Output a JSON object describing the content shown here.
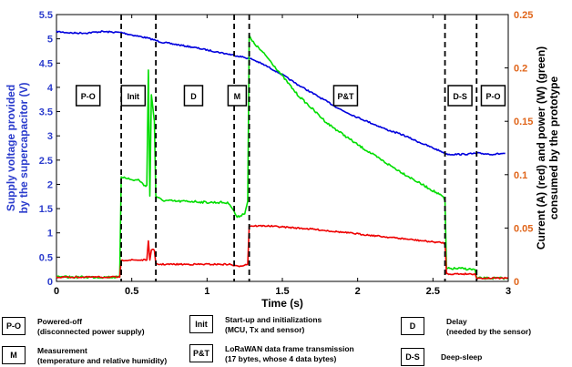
{
  "chart_data": {
    "type": "line",
    "xlabel": "Time (s)",
    "ylabel_left": "Supply voltage provided by the supercapacitor (V)",
    "ylabel_left_lines": [
      "Supply voltage provided",
      "by the supercapacitor (V)"
    ],
    "ylabel_right": "Current (A) (red) and power (W) (green) consumed by the prototype",
    "ylabel_right_lines": [
      "Current (A) (red) and power (W) (green)",
      "consumed by the prototype"
    ],
    "xlim": [
      0,
      3
    ],
    "ylim_left": [
      0,
      5.5
    ],
    "ylim_right": [
      0,
      0.25
    ],
    "x_ticks": [
      "0",
      "0.5",
      "1",
      "1.5",
      "2",
      "2.5",
      "3"
    ],
    "y_left_ticks": [
      "0",
      "0.5",
      "1",
      "1.5",
      "2",
      "2.5",
      "3",
      "3.5",
      "4",
      "4.5",
      "5",
      "5.5"
    ],
    "y_right_ticks": [
      "0",
      "0.05",
      "0.1",
      "0.15",
      "0.2",
      "0.25"
    ],
    "grid": false,
    "colors": {
      "voltage": "#0000dd",
      "current": "#ee0000",
      "power": "#00dd00",
      "left_axis": "#2a3bcc",
      "right_axis": "#e0651a"
    },
    "series": [
      {
        "axis": "left",
        "color": "voltage",
        "x": [
          0,
          0.1,
          0.2,
          0.3,
          0.43,
          0.5,
          0.6,
          0.7,
          0.8,
          0.9,
          1.0,
          1.1,
          1.2,
          1.3,
          1.4,
          1.5,
          1.6,
          1.7,
          1.8,
          1.9,
          2.0,
          2.1,
          2.2,
          2.3,
          2.4,
          2.5,
          2.6,
          2.7,
          2.8,
          2.9,
          2.98
        ],
        "y": [
          5.15,
          5.12,
          5.12,
          5.15,
          5.13,
          5.08,
          5.02,
          4.93,
          4.88,
          4.83,
          4.77,
          4.71,
          4.65,
          4.58,
          4.43,
          4.26,
          4.06,
          3.88,
          3.7,
          3.52,
          3.38,
          3.25,
          3.12,
          3.02,
          2.88,
          2.75,
          2.62,
          2.62,
          2.64,
          2.62,
          2.64
        ]
      },
      {
        "axis": "right",
        "color": "current",
        "x": [
          0,
          0.42,
          0.43,
          0.45,
          0.5,
          0.55,
          0.6,
          0.61,
          0.62,
          0.63,
          0.65,
          0.66,
          0.7,
          0.8,
          0.9,
          1.0,
          1.1,
          1.15,
          1.2,
          1.27,
          1.28,
          1.4,
          1.5,
          1.7,
          1.9,
          2.1,
          2.3,
          2.5,
          2.58,
          2.59,
          2.7,
          2.78,
          2.79,
          3.0
        ],
        "y": [
          0.004,
          0.004,
          0.019,
          0.02,
          0.02,
          0.02,
          0.02,
          0.038,
          0.02,
          0.03,
          0.029,
          0.016,
          0.016,
          0.016,
          0.016,
          0.016,
          0.016,
          0.016,
          0.014,
          0.016,
          0.052,
          0.052,
          0.051,
          0.049,
          0.046,
          0.043,
          0.04,
          0.037,
          0.036,
          0.007,
          0.007,
          0.007,
          0.003,
          0.003
        ]
      },
      {
        "axis": "right",
        "color": "power",
        "x": [
          0,
          0.42,
          0.43,
          0.45,
          0.5,
          0.55,
          0.58,
          0.6,
          0.61,
          0.62,
          0.63,
          0.65,
          0.66,
          0.7,
          0.8,
          0.9,
          1.0,
          1.1,
          1.15,
          1.2,
          1.25,
          1.27,
          1.28,
          1.3,
          1.4,
          1.6,
          1.8,
          2.0,
          2.2,
          2.4,
          2.5,
          2.57,
          2.58,
          2.59,
          2.7,
          2.78,
          2.79,
          3.0
        ],
        "y": [
          0.004,
          0.004,
          0.097,
          0.098,
          0.095,
          0.095,
          0.09,
          0.09,
          0.198,
          0.08,
          0.175,
          0.15,
          0.08,
          0.076,
          0.075,
          0.075,
          0.074,
          0.074,
          0.073,
          0.06,
          0.064,
          0.075,
          0.23,
          0.225,
          0.21,
          0.175,
          0.148,
          0.128,
          0.11,
          0.093,
          0.085,
          0.079,
          0.075,
          0.012,
          0.012,
          0.011,
          0.003,
          0.003
        ]
      }
    ],
    "phase_boundaries_x": [
      0.43,
      0.66,
      1.18,
      1.28,
      2.58,
      2.79
    ],
    "phases": [
      {
        "abbr": "P-O",
        "x": 0.21
      },
      {
        "abbr": "Init",
        "x": 0.51
      },
      {
        "abbr": "D",
        "x": 0.91
      },
      {
        "abbr": "M",
        "x": 1.2
      },
      {
        "abbr": "P&T",
        "x": 1.92
      },
      {
        "abbr": "D-S",
        "x": 2.68
      },
      {
        "abbr": "P-O",
        "x": 2.9
      }
    ]
  },
  "legend": [
    {
      "abbr": "P-O",
      "line1": "Powered-off",
      "line2": "(disconnected power supply)"
    },
    {
      "abbr": "Init",
      "line1": "Start-up and initializations",
      "line2": "(MCU, Tx and sensor)"
    },
    {
      "abbr": "D",
      "line1": "Delay",
      "line2": "(needed by the sensor)"
    },
    {
      "abbr": "M",
      "line1": "Measurement",
      "line2": "(temperature and relative humidity)"
    },
    {
      "abbr": "P&T",
      "line1": "LoRaWAN data frame transmission",
      "line2": "(17 bytes, whose 4 data bytes)"
    },
    {
      "abbr": "D-S",
      "line1": "Deep-sleep",
      "line2": ""
    }
  ]
}
